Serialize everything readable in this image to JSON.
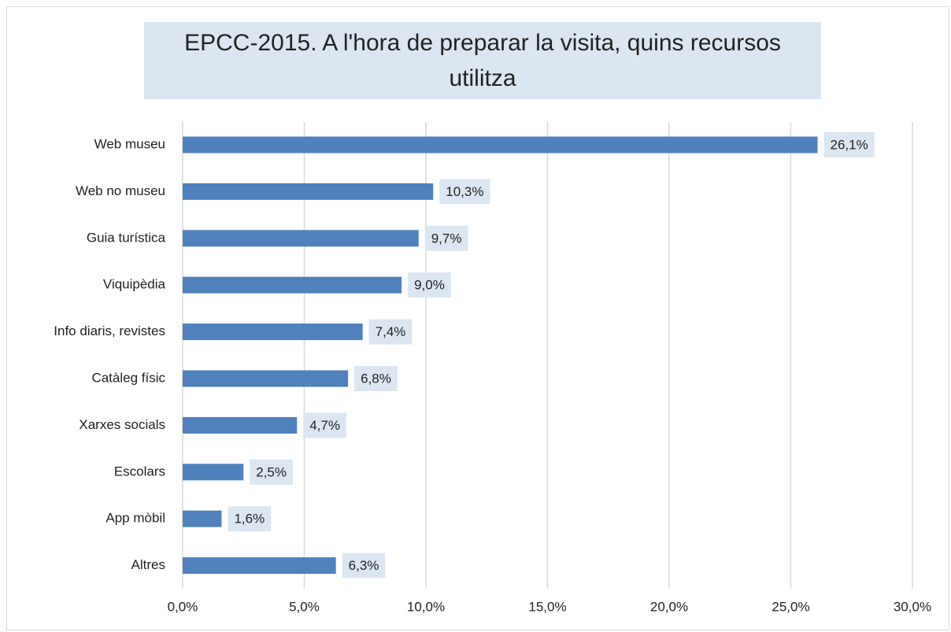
{
  "chart_data": {
    "type": "bar",
    "orientation": "horizontal",
    "title": "EPCC-2015. A l'hora de preparar la visita, quins recursos utilitza",
    "categories": [
      "Web museu",
      "Web no museu",
      "Guia turística",
      "Viquipèdia",
      "Info diaris, revistes",
      "Catàleg físic",
      "Xarxes socials",
      "Escolars",
      "App mòbil",
      "Altres"
    ],
    "values": [
      26.1,
      10.3,
      9.7,
      9.0,
      7.4,
      6.8,
      4.7,
      2.5,
      1.6,
      6.3
    ],
    "value_labels": [
      "26,1%",
      "10,3%",
      "9,7%",
      "9,0%",
      "7,4%",
      "6,8%",
      "4,7%",
      "2,5%",
      "1,6%",
      "6,3%"
    ],
    "color": "#4f81bd",
    "xlim": [
      0,
      30
    ],
    "xticks": [
      {
        "value": 0,
        "label": "0,0%"
      },
      {
        "value": 5,
        "label": "5,0%"
      },
      {
        "value": 10,
        "label": "10,0%"
      },
      {
        "value": 15,
        "label": "15,0%"
      },
      {
        "value": 20,
        "label": "20,0%"
      },
      {
        "value": 25,
        "label": "25,0%"
      },
      {
        "value": 30,
        "label": "30,0%"
      }
    ],
    "grid": true
  }
}
